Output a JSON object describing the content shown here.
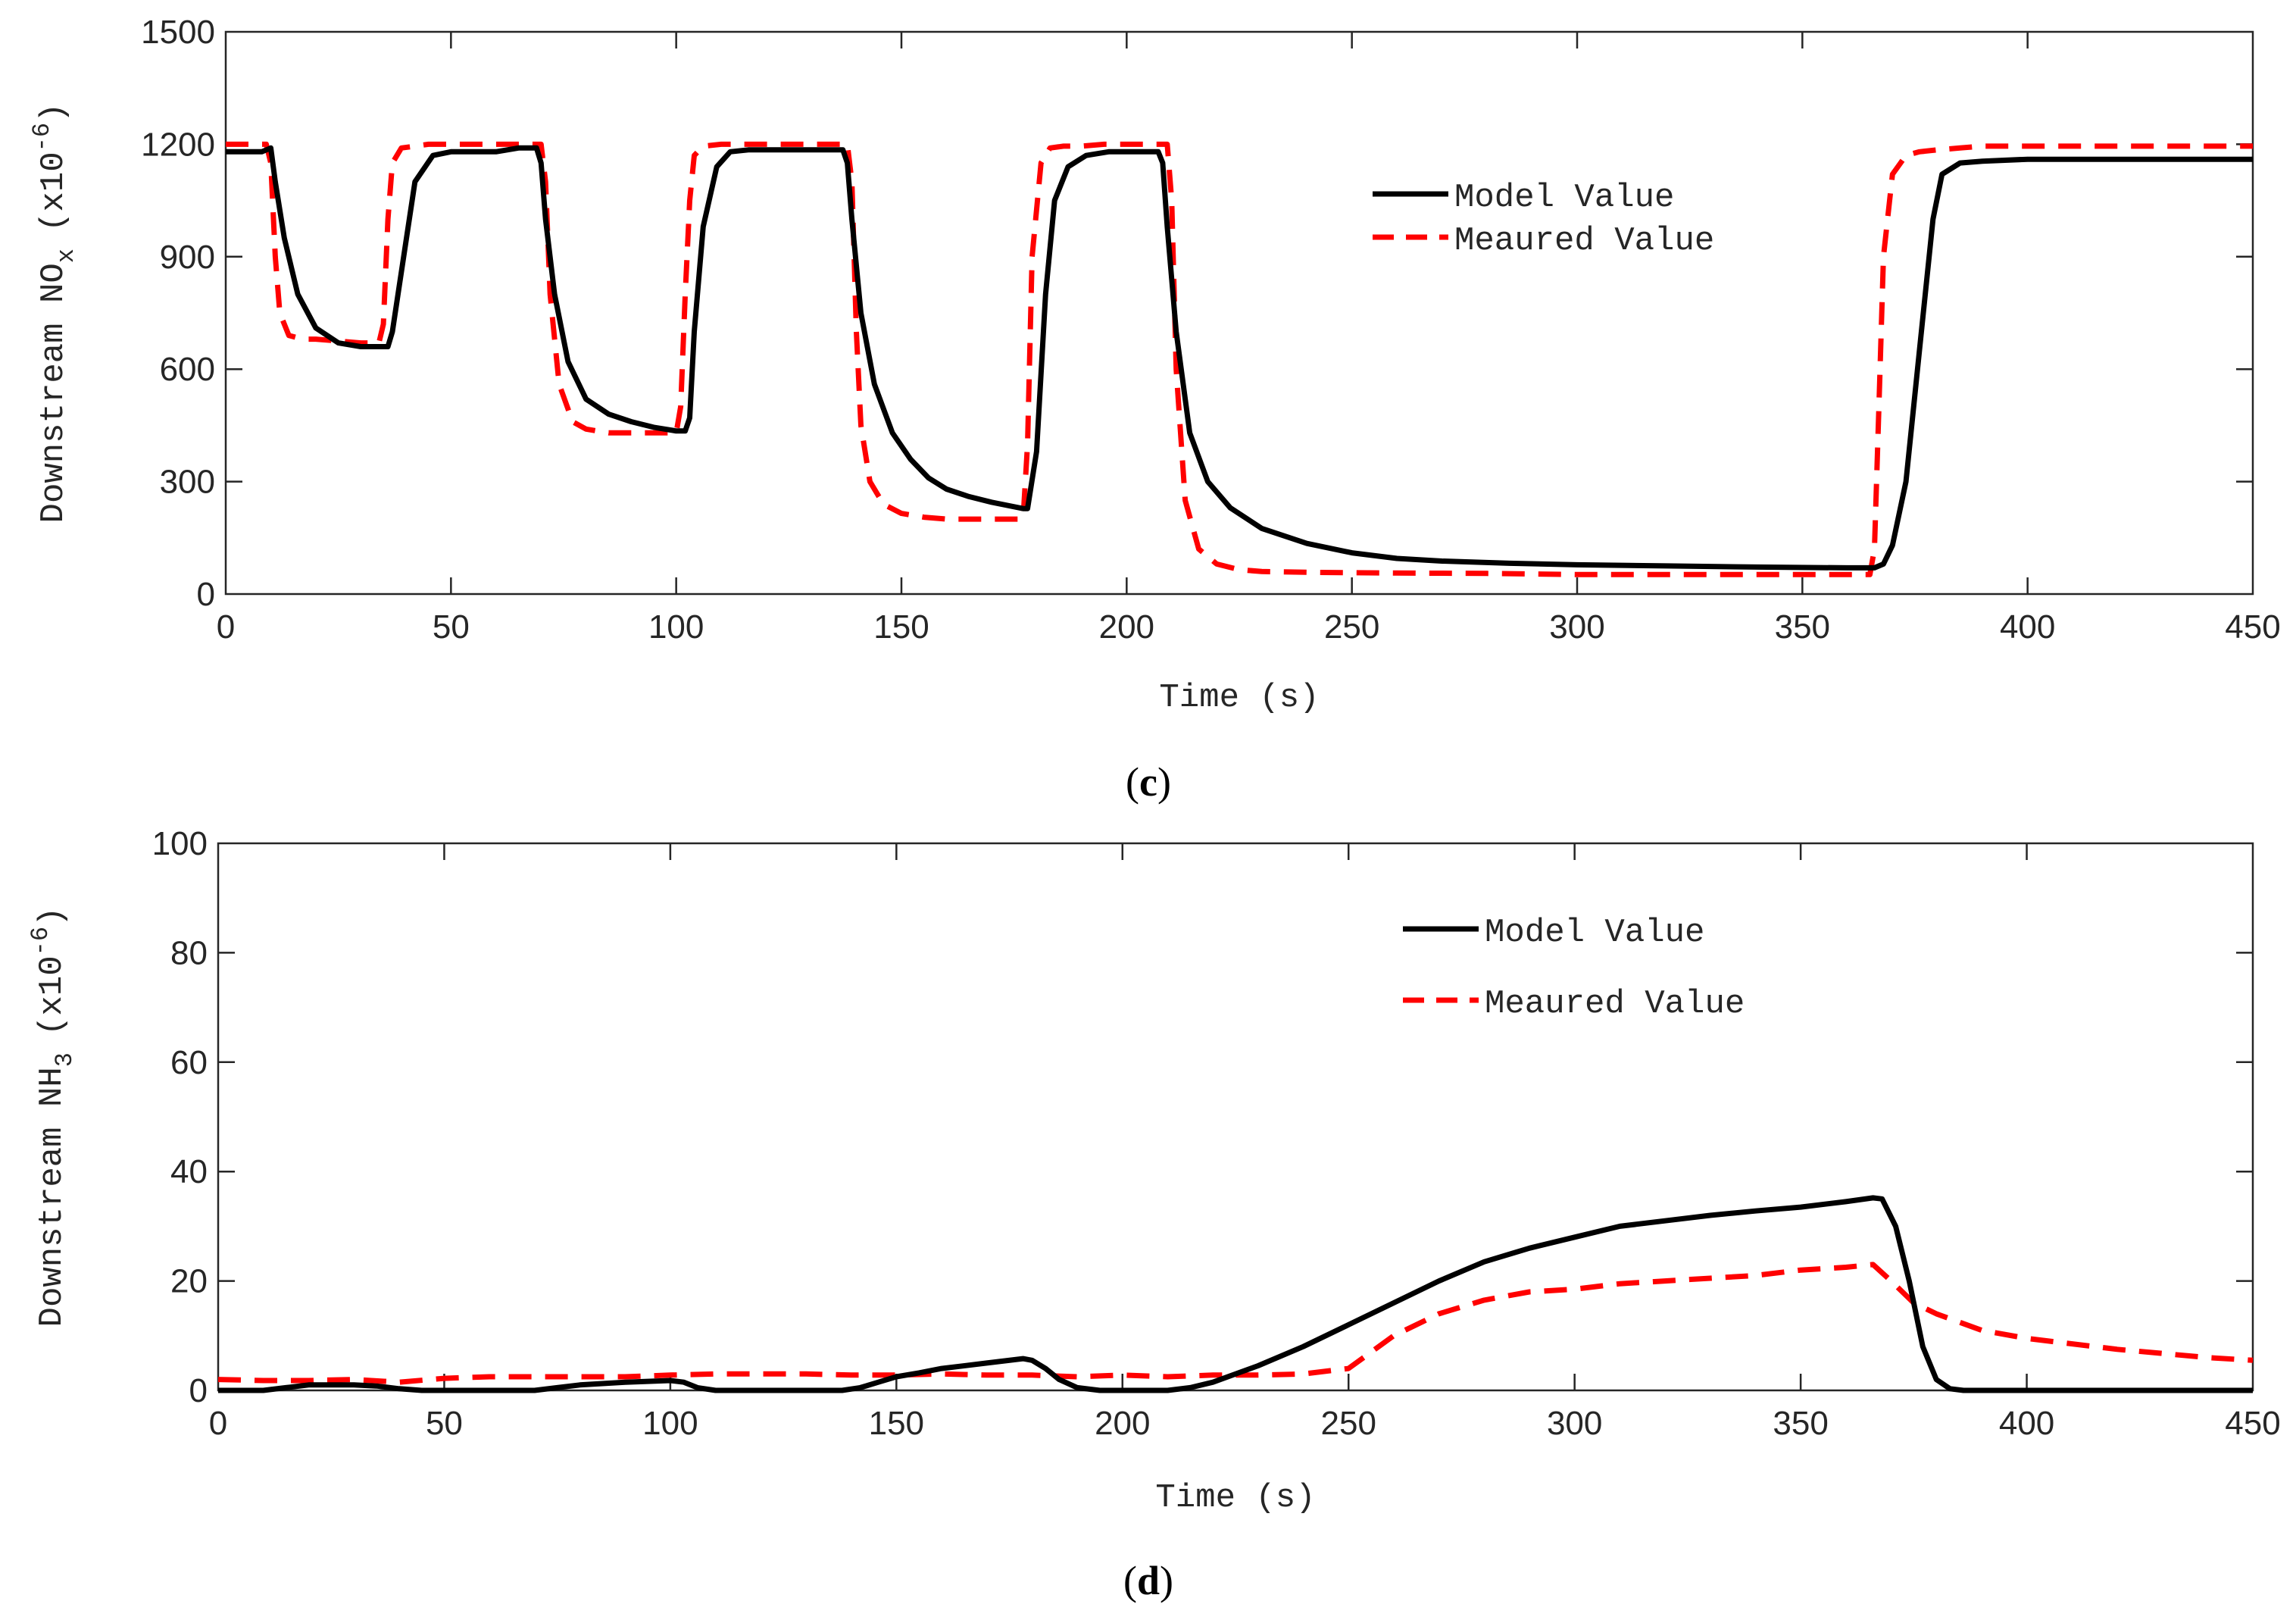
{
  "chart_data": [
    {
      "type": "line",
      "panel_label": "c",
      "xlabel": "Time (s)",
      "ylabel": "Downstream NO",
      "ylabel_sub": "x",
      "ylabel_unit": "(x10",
      "ylabel_exp": "-6",
      "ylabel_close": ")",
      "xlim": [
        0,
        450
      ],
      "ylim": [
        0,
        1500
      ],
      "xticks": [
        "0",
        "50",
        "100",
        "150",
        "200",
        "250",
        "300",
        "350",
        "400",
        "450"
      ],
      "yticks": [
        "0",
        "300",
        "600",
        "900",
        "1200",
        "1500"
      ],
      "legend": "top-right",
      "series": [
        {
          "name": "Model Value",
          "color": "#000000",
          "style": "solid",
          "x": [
            0,
            8,
            10,
            11,
            13,
            16,
            20,
            25,
            30,
            35,
            36,
            37,
            39,
            42,
            46,
            50,
            55,
            60,
            65,
            69,
            70,
            71,
            73,
            76,
            80,
            85,
            90,
            95,
            100,
            102,
            103,
            104,
            106,
            109,
            112,
            116,
            120,
            125,
            130,
            137,
            138,
            139,
            141,
            144,
            148,
            152,
            156,
            160,
            165,
            170,
            177,
            178,
            180,
            182,
            184,
            187,
            191,
            196,
            200,
            207,
            208,
            209,
            211,
            214,
            218,
            223,
            230,
            240,
            250,
            260,
            270,
            285,
            300,
            320,
            340,
            360,
            365,
            366,
            368,
            370,
            373,
            376,
            379,
            381,
            385,
            390,
            400,
            410,
            420,
            430,
            440,
            450
          ],
          "y": [
            1180,
            1180,
            1190,
            1100,
            950,
            800,
            710,
            670,
            660,
            660,
            660,
            700,
            860,
            1100,
            1170,
            1180,
            1180,
            1180,
            1190,
            1190,
            1150,
            1000,
            800,
            620,
            520,
            480,
            460,
            445,
            435,
            435,
            470,
            700,
            980,
            1140,
            1180,
            1185,
            1185,
            1185,
            1185,
            1185,
            1150,
            1000,
            750,
            560,
            430,
            360,
            310,
            280,
            260,
            245,
            228,
            228,
            380,
            800,
            1050,
            1140,
            1170,
            1180,
            1180,
            1180,
            1150,
            980,
            700,
            430,
            300,
            230,
            175,
            135,
            110,
            95,
            88,
            82,
            78,
            75,
            72,
            70,
            70,
            70,
            80,
            130,
            300,
            650,
            1000,
            1120,
            1150,
            1155,
            1160,
            1160,
            1160,
            1160,
            1160,
            1160
          ]
        },
        {
          "name": "Meaured Value",
          "color": "#ff0000",
          "style": "dashed",
          "x": [
            0,
            9,
            10,
            11,
            12,
            14,
            17,
            20,
            25,
            30,
            34,
            35,
            36,
            37,
            39,
            42,
            45,
            50,
            55,
            60,
            65,
            70,
            71,
            72,
            74,
            77,
            80,
            85,
            90,
            95,
            100,
            101,
            102,
            103,
            104,
            106,
            110,
            115,
            120,
            130,
            138,
            139,
            140,
            141,
            143,
            146,
            150,
            155,
            160,
            165,
            170,
            177,
            178,
            179,
            181,
            183,
            186,
            190,
            195,
            200,
            209,
            210,
            211,
            213,
            216,
            220,
            225,
            230,
            240,
            260,
            280,
            300,
            320,
            340,
            365,
            366,
            367,
            368,
            370,
            373,
            376,
            380,
            385,
            390,
            400,
            420,
            450
          ],
          "y": [
            1200,
            1200,
            1150,
            900,
            750,
            690,
            680,
            680,
            675,
            670,
            670,
            720,
            1000,
            1150,
            1190,
            1195,
            1200,
            1200,
            1200,
            1200,
            1200,
            1200,
            1100,
            800,
            560,
            460,
            440,
            430,
            430,
            430,
            430,
            500,
            800,
            1050,
            1170,
            1195,
            1200,
            1200,
            1200,
            1200,
            1200,
            1100,
            700,
            450,
            300,
            240,
            215,
            205,
            200,
            200,
            200,
            200,
            400,
            900,
            1150,
            1190,
            1195,
            1195,
            1200,
            1200,
            1200,
            1050,
            600,
            250,
            120,
            80,
            65,
            60,
            58,
            56,
            55,
            52,
            52,
            52,
            52,
            120,
            500,
            900,
            1120,
            1170,
            1180,
            1185,
            1190,
            1195,
            1195,
            1195,
            1195
          ]
        }
      ]
    },
    {
      "type": "line",
      "panel_label": "d",
      "xlabel": "Time (s)",
      "ylabel": "Downstream NH",
      "ylabel_sub": "3",
      "ylabel_unit": "(x10",
      "ylabel_exp": "-6",
      "ylabel_close": ")",
      "xlim": [
        0,
        450
      ],
      "ylim": [
        0,
        100
      ],
      "xticks": [
        "0",
        "50",
        "100",
        "150",
        "200",
        "250",
        "300",
        "350",
        "400",
        "450"
      ],
      "yticks": [
        "0",
        "20",
        "40",
        "60",
        "80",
        "100"
      ],
      "legend": "top-right",
      "series": [
        {
          "name": "Model Value",
          "color": "#000000",
          "style": "solid",
          "x": [
            0,
            10,
            15,
            20,
            25,
            30,
            35,
            40,
            45,
            70,
            75,
            80,
            90,
            100,
            103,
            106,
            110,
            138,
            142,
            146,
            150,
            155,
            160,
            170,
            178,
            180,
            183,
            186,
            190,
            195,
            200,
            210,
            215,
            220,
            230,
            240,
            250,
            260,
            270,
            280,
            290,
            300,
            310,
            320,
            330,
            340,
            350,
            360,
            366,
            368,
            371,
            374,
            377,
            380,
            383,
            386,
            390,
            400,
            450
          ],
          "y": [
            0,
            0,
            0.5,
            1,
            1,
            1,
            0.8,
            0.3,
            0,
            0,
            0.5,
            1,
            1.5,
            1.8,
            1.5,
            0.5,
            0,
            0,
            0.5,
            1.5,
            2.5,
            3.2,
            4,
            5,
            5.8,
            5.5,
            4,
            2,
            0.5,
            0,
            0,
            0,
            0.5,
            1.5,
            4.5,
            8,
            12,
            16,
            20,
            23.5,
            26,
            28,
            30,
            31,
            32,
            32.8,
            33.5,
            34.5,
            35.2,
            35,
            30,
            20,
            8,
            2,
            0.3,
            0,
            0,
            0,
            0
          ]
        },
        {
          "name": "Meaured Value",
          "color": "#ff0000",
          "style": "dashed",
          "x": [
            0,
            10,
            20,
            30,
            40,
            50,
            60,
            70,
            80,
            90,
            100,
            110,
            120,
            130,
            140,
            150,
            160,
            170,
            180,
            190,
            200,
            210,
            220,
            230,
            240,
            250,
            260,
            270,
            280,
            290,
            300,
            310,
            320,
            330,
            340,
            350,
            360,
            366,
            370,
            375,
            380,
            390,
            400,
            420,
            440,
            450
          ],
          "y": [
            2,
            1.8,
            1.8,
            2,
            1.5,
            2.2,
            2.5,
            2.5,
            2.5,
            2.5,
            2.8,
            3,
            3,
            3,
            2.8,
            2.8,
            3,
            2.8,
            2.8,
            2.5,
            2.8,
            2.5,
            2.8,
            2.8,
            3,
            4,
            10,
            14,
            16.5,
            18,
            18.5,
            19.5,
            20,
            20.5,
            21,
            22,
            22.5,
            23,
            20,
            16,
            14,
            11,
            9.5,
            7.5,
            6,
            5.5
          ]
        }
      ]
    }
  ]
}
